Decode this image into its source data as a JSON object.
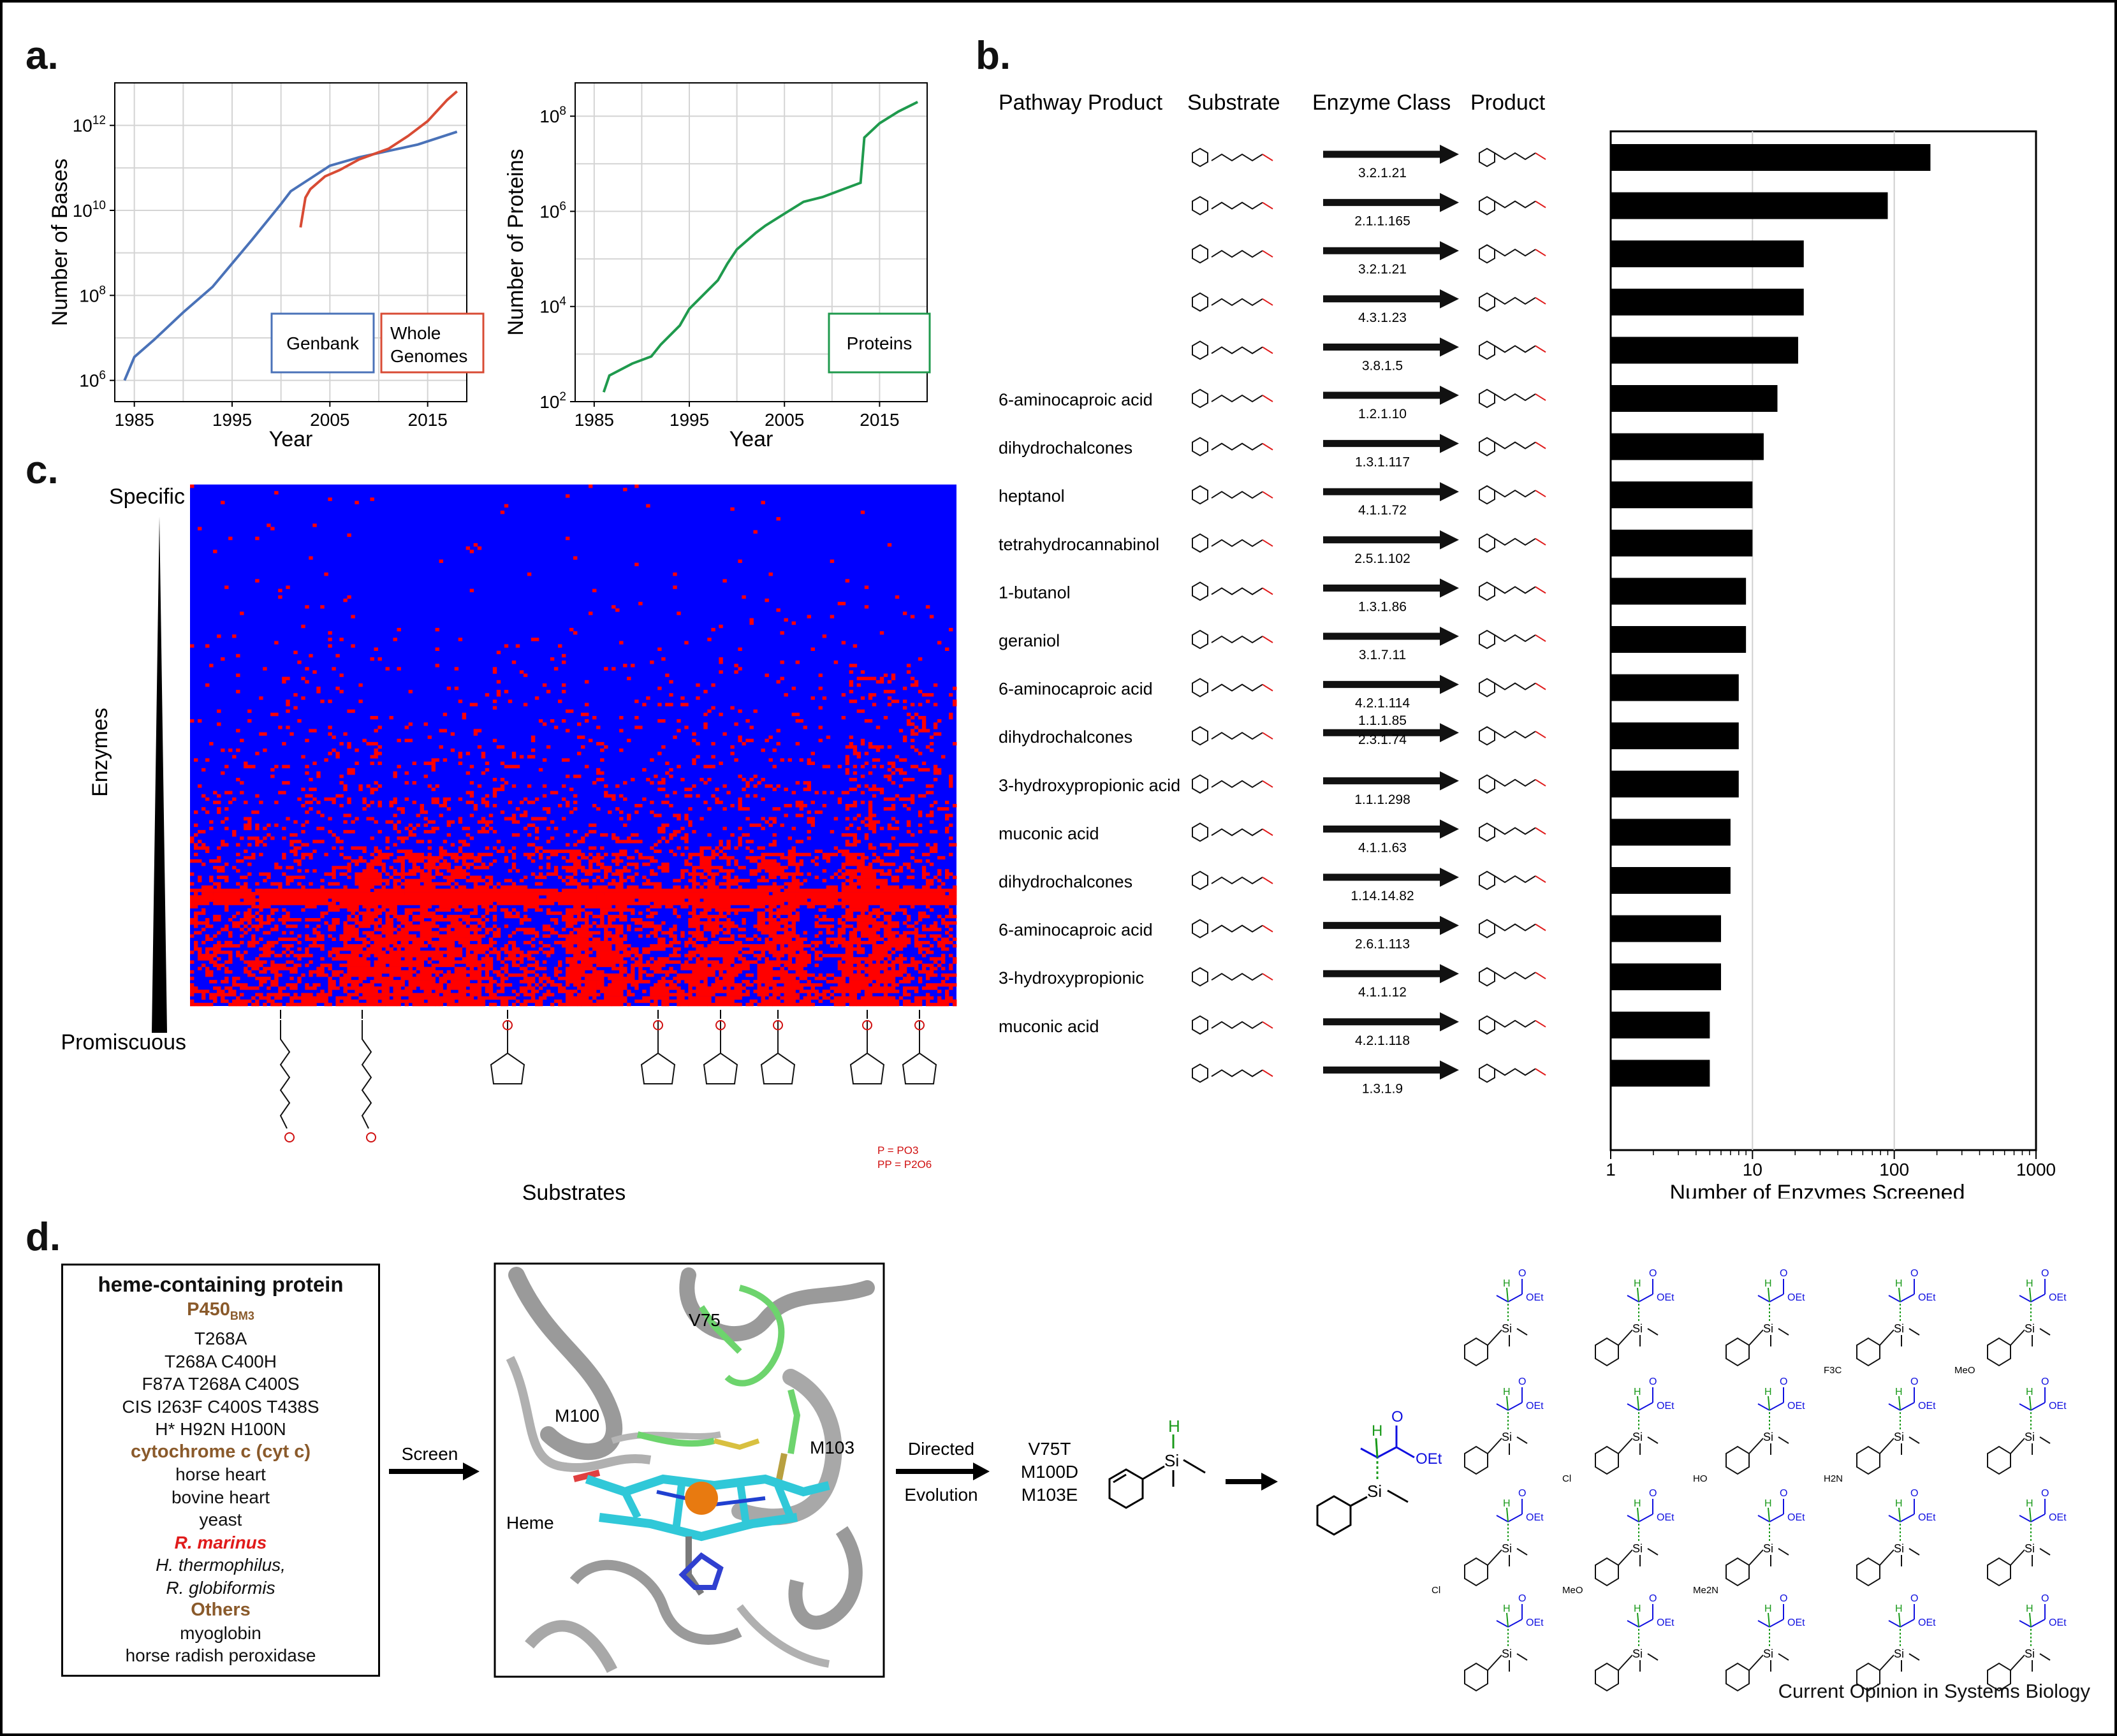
{
  "panels": {
    "a": "a.",
    "b": "b.",
    "c": "c.",
    "d": "d."
  },
  "colors": {
    "genbank": "#4a72b8",
    "whole_genomes": "#d84b34",
    "proteins": "#1f9a4d",
    "heat_low": "#0000ff",
    "heat_high": "#ff0000",
    "pyruvate_blue": "#1010e0",
    "silicon_green": "#1a9a1a"
  },
  "chart_data": [
    {
      "type": "line",
      "xlabel": "Year",
      "ylabel": "Number of Bases",
      "x_ticks": [
        "1985",
        "1995",
        "2005",
        "2015"
      ],
      "y_ticks": [
        "10^6",
        "10^8",
        "10^10",
        "10^12"
      ],
      "xlim": [
        1983,
        2019
      ],
      "ylim_log10": [
        5.5,
        13
      ],
      "scale_y": "log",
      "grid": true,
      "legend": [
        "Genbank",
        "Whole Genomes"
      ],
      "series": [
        {
          "name": "Genbank",
          "x": [
            1984,
            1985,
            1987,
            1990,
            1993,
            1995,
            1997,
            2000,
            2001,
            2003,
            2005,
            2008,
            2011,
            2014,
            2018
          ],
          "y_log10": [
            6.0,
            6.55,
            6.95,
            7.6,
            8.2,
            8.75,
            9.3,
            10.15,
            10.45,
            10.75,
            11.05,
            11.25,
            11.4,
            11.55,
            11.85
          ]
        },
        {
          "name": "Whole Genomes",
          "x": [
            2002,
            2002.5,
            2003,
            2004.5,
            2006,
            2008,
            2011,
            2013,
            2015,
            2017,
            2018
          ],
          "y_log10": [
            9.6,
            10.3,
            10.5,
            10.8,
            10.95,
            11.2,
            11.45,
            11.75,
            12.1,
            12.6,
            12.8
          ]
        }
      ]
    },
    {
      "type": "line",
      "xlabel": "Year",
      "ylabel": "Number of Proteins",
      "x_ticks": [
        "1985",
        "1995",
        "2005",
        "2015"
      ],
      "y_ticks": [
        "10^2",
        "10^4",
        "10^6",
        "10^8"
      ],
      "xlim": [
        1983,
        2020
      ],
      "ylim_log10": [
        2,
        8.7
      ],
      "scale_y": "log",
      "grid": true,
      "legend": [
        "Proteins"
      ],
      "series": [
        {
          "name": "Proteins",
          "x": [
            1986,
            1986.6,
            1989,
            1991,
            1992,
            1994,
            1995,
            1997,
            1998,
            1999,
            2000,
            2002,
            2003,
            2005,
            2007,
            2009,
            2011,
            2013,
            2013.4,
            2015,
            2017,
            2019
          ],
          "y_log10": [
            2.2,
            2.55,
            2.8,
            2.95,
            3.2,
            3.6,
            3.95,
            4.35,
            4.55,
            4.9,
            5.2,
            5.55,
            5.7,
            5.95,
            6.2,
            6.3,
            6.45,
            6.6,
            7.55,
            7.85,
            8.1,
            8.3
          ]
        }
      ]
    },
    {
      "type": "bar",
      "orientation": "horizontal",
      "xlabel": "Number of Enzymes Screened",
      "x_ticks": [
        "1",
        "10",
        "100",
        "1000"
      ],
      "scale_x": "log",
      "xlim": [
        1,
        1000
      ],
      "grid": true,
      "categories": [
        "3.2.1.21",
        "2.1.1.165",
        "3.2.1.21",
        "4.3.1.23",
        "3.8.1.5",
        "1.2.1.10",
        "1.3.1.117",
        "4.1.1.72",
        "2.5.1.102",
        "1.3.1.86",
        "3.1.7.11",
        "4.2.1.114",
        "1.1.1.85 / 2.3.1.74",
        "1.1.1.298",
        "4.1.1.63",
        "1.14.14.82",
        "2.6.1.113",
        "4.1.1.12",
        "4.2.1.118",
        "1.3.1.9"
      ],
      "values": [
        180,
        90,
        23,
        23,
        21,
        15,
        12,
        10,
        10,
        9,
        9,
        8,
        8,
        8,
        7,
        7,
        6,
        6,
        5,
        5
      ]
    },
    {
      "type": "heatmap",
      "xlabel": "Substrates",
      "ylabel": "Enzymes",
      "y_top_label": "Specific",
      "y_bottom_label": "Promiscuous"
    }
  ],
  "panel_a": {
    "legend_genbank": "Genbank",
    "legend_whole_1": "Whole",
    "legend_whole_2": "Genomes",
    "legend_proteins": "Proteins",
    "xlabel": "Year",
    "ylabel_bases": "Number of Bases",
    "ylabel_proteins": "Number of Proteins",
    "x_ticks": [
      "1985",
      "1995",
      "2005",
      "2015"
    ]
  },
  "panel_b": {
    "headers": [
      "Pathway Product",
      "Substrate",
      "Enzyme Class",
      "Product"
    ],
    "pathway_products": [
      "",
      "",
      "",
      "",
      "",
      "6-aminocaproic acid",
      "dihydrochalcones",
      "heptanol",
      "tetrahydrocannabinol",
      "1-butanol",
      "geraniol",
      "6-aminocaproic acid",
      "dihydrochalcones",
      "3-hydroxypropionic acid",
      "muconic acid",
      "dihydrochalcones",
      "6-aminocaproic acid",
      "3-hydroxypropionic",
      "muconic acid",
      ""
    ],
    "enzyme_classes": [
      "3.2.1.21",
      "2.1.1.165",
      "3.2.1.21",
      "4.3.1.23",
      "3.8.1.5",
      "1.2.1.10",
      "1.3.1.117",
      "4.1.1.72",
      "2.5.1.102",
      "1.3.1.86",
      "3.1.7.11",
      "4.2.1.114",
      "1.1.1.85",
      "1.1.1.298",
      "4.1.1.63",
      "1.14.14.82",
      "2.6.1.113",
      "4.1.1.12",
      "4.2.1.118",
      "1.3.1.9"
    ],
    "extra_ec_row13": "2.3.1.74",
    "x_ticks": [
      "1",
      "10",
      "100",
      "1000"
    ],
    "xlabel": "Number of Enzymes Screened"
  },
  "panel_c": {
    "ylabel": "Enzymes",
    "top": "Specific",
    "bottom": "Promiscuous",
    "xlabel": "Substrates",
    "footnote_p": "P = PO3",
    "footnote_pp": "PP = P2O6"
  },
  "panel_d": {
    "box_title": "heme-containing protein",
    "list": [
      {
        "text": "P450",
        "sub": "BM3",
        "kind": "group"
      },
      {
        "text": "T268A",
        "kind": "plain"
      },
      {
        "text": "T268A C400H",
        "kind": "plain"
      },
      {
        "text": "F87A T268A C400S",
        "kind": "plain"
      },
      {
        "text": "CIS I263F C400S T438S",
        "kind": "plain"
      },
      {
        "text": "H* H92N H100N",
        "kind": "plain"
      },
      {
        "text": "cytochrome c (cyt c)",
        "kind": "group"
      },
      {
        "text": "horse heart",
        "kind": "plain"
      },
      {
        "text": "bovine heart",
        "kind": "plain"
      },
      {
        "text": "yeast",
        "kind": "plain"
      },
      {
        "text": "R. marinus",
        "kind": "highlight"
      },
      {
        "text": "H. thermophilus,",
        "kind": "italic"
      },
      {
        "text": "R. globiformis",
        "kind": "italic"
      },
      {
        "text": "Others",
        "kind": "group"
      },
      {
        "text": "myoglobin",
        "kind": "plain"
      },
      {
        "text": "horse radish peroxidase",
        "kind": "plain"
      }
    ],
    "screen": "Screen",
    "directed": "Directed",
    "evolution": "Evolution",
    "mutations": [
      "V75T",
      "M100D",
      "M103E"
    ],
    "residue_labels": [
      "V75",
      "M100",
      "M103",
      "Heme"
    ],
    "atom_si": "Si",
    "atom_h": "H",
    "atom_o": "O",
    "oet": "OEt",
    "substituents": [
      "F3C",
      "MeO",
      "Cl",
      "HO",
      "H2N",
      "Cl",
      "MeO",
      "Me2N"
    ]
  },
  "journal": "Current Opinion in Systems Biology"
}
